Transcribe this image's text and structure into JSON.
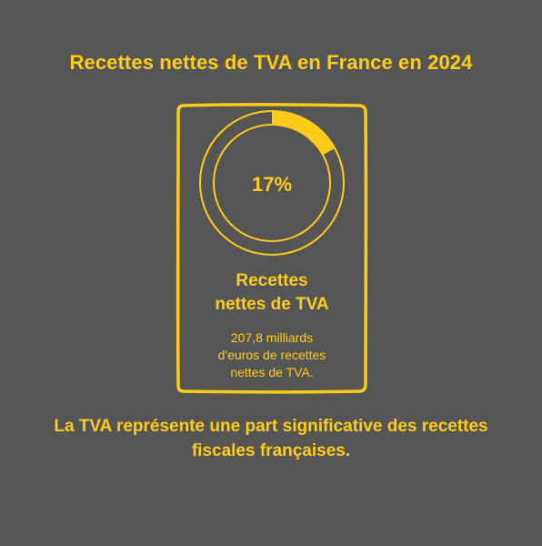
{
  "title": "Recettes nettes de TVA en France en 2024",
  "card": {
    "percent_label": "17%",
    "percent_value": 17,
    "heading_line1": "Recettes",
    "heading_line2": "nettes de TVA",
    "text_line1": "207,8 milliards",
    "text_line2": "d'euros de recettes",
    "text_line3": "nettes de TVA."
  },
  "caption": {
    "line1": "La TVA représente une part significative des recettes",
    "line2": "fiscales françaises."
  },
  "colors": {
    "background": "#555555",
    "accent": "#FFCC1A"
  }
}
